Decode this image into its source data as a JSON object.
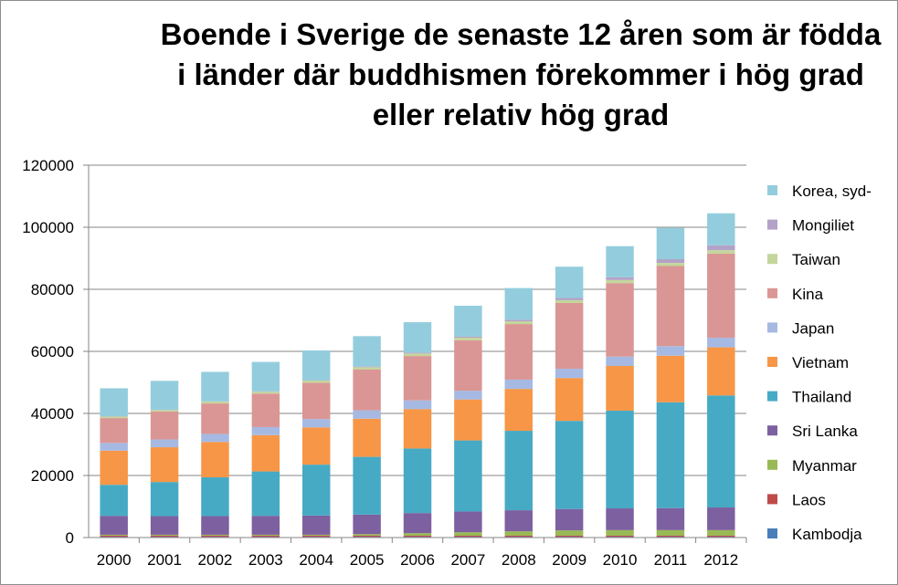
{
  "chart_data": {
    "type": "bar",
    "stacked": true,
    "title_lines": [
      "Boende i Sverige de senaste 12 åren som är födda",
      "i länder där buddhismen förekommer i hög grad",
      "eller relativ hög grad"
    ],
    "categories": [
      "2000",
      "2001",
      "2002",
      "2003",
      "2004",
      "2005",
      "2006",
      "2007",
      "2008",
      "2009",
      "2010",
      "2011",
      "2012"
    ],
    "ylim": [
      0,
      120000
    ],
    "yticks": [
      0,
      20000,
      40000,
      60000,
      80000,
      100000,
      120000
    ],
    "ytick_labels": [
      "0",
      "20000",
      "40000",
      "60000",
      "80000",
      "100000",
      "120000"
    ],
    "grid": true,
    "legend_position": "right",
    "series": [
      {
        "name": "Kambodja",
        "color": "#4a7ebb",
        "values": [
          200,
          200,
          200,
          200,
          200,
          200,
          200,
          200,
          200,
          200,
          200,
          200,
          200
        ]
      },
      {
        "name": "Laos",
        "color": "#be4b48",
        "values": [
          400,
          400,
          400,
          400,
          400,
          400,
          400,
          400,
          400,
          400,
          400,
          400,
          400
        ]
      },
      {
        "name": "Myanmar",
        "color": "#98b954",
        "values": [
          300,
          300,
          300,
          300,
          300,
          500,
          800,
          1100,
          1400,
          1700,
          1800,
          1800,
          1800
        ]
      },
      {
        "name": "Sri Lanka",
        "color": "#7d60a0",
        "values": [
          6100,
          6000,
          6000,
          6100,
          6200,
          6300,
          6500,
          6700,
          6800,
          6900,
          7000,
          7100,
          7300
        ]
      },
      {
        "name": "Thailand",
        "color": "#46aac5",
        "values": [
          10000,
          11000,
          12500,
          14300,
          16400,
          18600,
          20800,
          22900,
          25600,
          28400,
          31500,
          34100,
          36100
        ]
      },
      {
        "name": "Vietnam",
        "color": "#f79646",
        "values": [
          11000,
          11200,
          11400,
          11700,
          12000,
          12300,
          12700,
          13200,
          13500,
          13800,
          14400,
          15000,
          15500
        ]
      },
      {
        "name": "Japan",
        "color": "#a5b9e3",
        "values": [
          2500,
          2500,
          2600,
          2600,
          2700,
          2700,
          2800,
          2800,
          3000,
          3000,
          3000,
          3100,
          3100
        ]
      },
      {
        "name": "Kina",
        "color": "#da9694",
        "values": [
          8000,
          9000,
          9800,
          10800,
          11700,
          13200,
          14300,
          16300,
          17900,
          21200,
          23700,
          25800,
          27100
        ]
      },
      {
        "name": "Taiwan",
        "color": "#c3d69b",
        "values": [
          500,
          500,
          600,
          600,
          700,
          700,
          800,
          800,
          900,
          900,
          1000,
          1000,
          1100
        ]
      },
      {
        "name": "Mongiliet",
        "color": "#b3a2c7",
        "values": [
          100,
          100,
          100,
          100,
          100,
          200,
          300,
          400,
          500,
          700,
          900,
          1200,
          1600
        ]
      },
      {
        "name": "Korea, syd-",
        "color": "#93cddd",
        "values": [
          9000,
          9300,
          9500,
          9500,
          9600,
          9800,
          9800,
          9900,
          10200,
          10100,
          10000,
          10100,
          10300
        ]
      }
    ]
  }
}
